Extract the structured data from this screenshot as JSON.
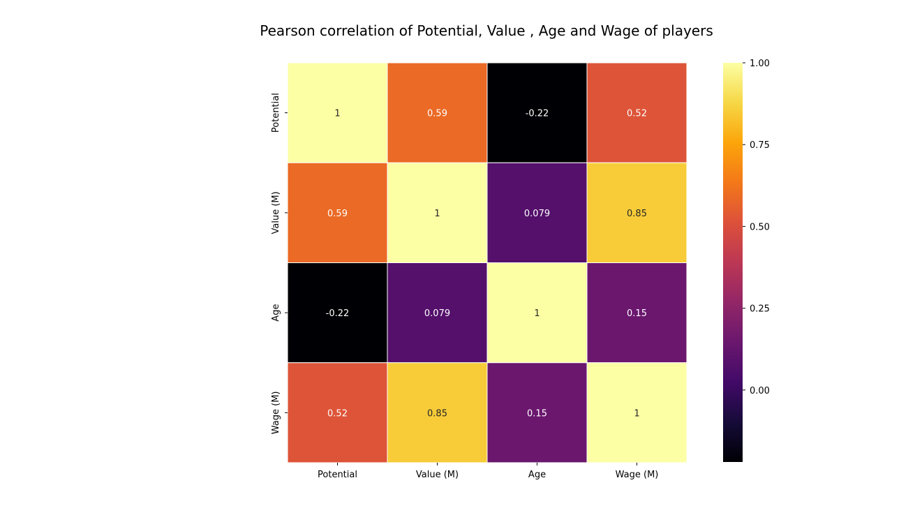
{
  "chart_data": {
    "type": "heatmap",
    "title": "Pearson correlation of Potential, Value , Age and Wage of players",
    "row_labels": [
      "Potential",
      "Value (M)",
      "Age",
      "Wage (M)"
    ],
    "col_labels": [
      "Potential",
      "Value (M)",
      "Age",
      "Wage (M)"
    ],
    "values": [
      [
        1,
        0.59,
        -0.22,
        0.52
      ],
      [
        0.59,
        1,
        0.079,
        0.85
      ],
      [
        -0.22,
        0.079,
        1,
        0.15
      ],
      [
        0.52,
        0.85,
        0.15,
        1
      ]
    ],
    "annotations": [
      [
        "1",
        "0.59",
        "-0.22",
        "0.52"
      ],
      [
        "0.59",
        "1",
        "0.079",
        "0.85"
      ],
      [
        "-0.22",
        "0.079",
        "1",
        "0.15"
      ],
      [
        "0.52",
        "0.85",
        "0.15",
        "1"
      ]
    ],
    "colormap": "inferno",
    "vmin": -0.22,
    "vmax": 1.0,
    "colorbar": {
      "ticks": [
        1.0,
        0.75,
        0.5,
        0.25,
        0.0
      ],
      "tick_labels": [
        "1.00",
        "0.75",
        "0.50",
        "0.25",
        "0.00"
      ],
      "placement": "right"
    },
    "cell_border_color": "#ffffff"
  }
}
